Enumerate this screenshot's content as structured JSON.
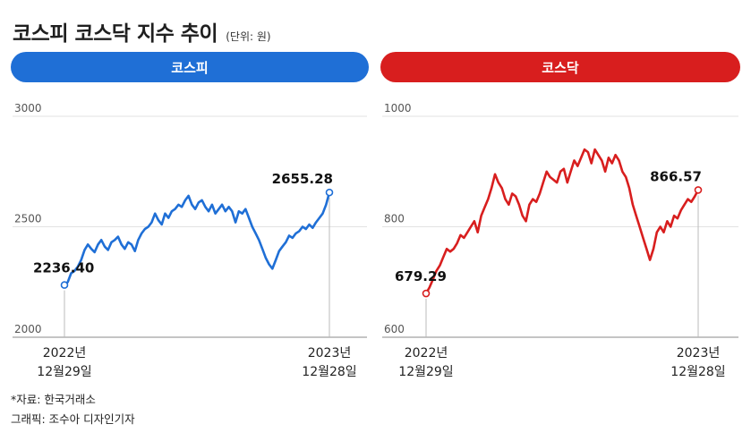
{
  "header": {
    "title": "코스피 코스닥 지수 추이",
    "unit": "(단위: 원)"
  },
  "colors": {
    "kospi": "#1f6fd6",
    "kosdaq": "#d81e1e",
    "grid": "#e2e2e2"
  },
  "footer": {
    "source": "*자료: 한국거래소",
    "credit": "그래픽: 조수아 디자인기자"
  },
  "chart_data": [
    {
      "type": "line",
      "name": "코스피",
      "ylim": [
        2000,
        3000
      ],
      "yticks": [
        "3000",
        "2500",
        "2000"
      ],
      "xticks": [
        {
          "line1": "2022년",
          "line2": "12월29일"
        },
        {
          "line1": "2023년",
          "line2": "12월28일"
        }
      ],
      "start": {
        "value": 2236.4,
        "label": "2236.40"
      },
      "end": {
        "value": 2655.28,
        "label": "2655.28"
      },
      "values": [
        2236.4,
        2250,
        2290,
        2300,
        2320,
        2350,
        2395,
        2420,
        2400,
        2385,
        2420,
        2440,
        2410,
        2395,
        2430,
        2440,
        2455,
        2420,
        2400,
        2430,
        2420,
        2390,
        2440,
        2470,
        2490,
        2500,
        2520,
        2560,
        2530,
        2510,
        2560,
        2540,
        2570,
        2580,
        2600,
        2590,
        2620,
        2640,
        2600,
        2580,
        2610,
        2620,
        2590,
        2570,
        2600,
        2560,
        2580,
        2600,
        2570,
        2590,
        2570,
        2520,
        2570,
        2560,
        2580,
        2540,
        2500,
        2470,
        2440,
        2400,
        2360,
        2330,
        2310,
        2350,
        2390,
        2410,
        2430,
        2460,
        2450,
        2470,
        2480,
        2500,
        2490,
        2510,
        2495,
        2520,
        2540,
        2560,
        2600,
        2655.28
      ]
    },
    {
      "type": "line",
      "name": "코스닥",
      "ylim": [
        600,
        1000
      ],
      "yticks": [
        "1000",
        "800",
        "600"
      ],
      "xticks": [
        {
          "line1": "2022년",
          "line2": "12월29일"
        },
        {
          "line1": "2023년",
          "line2": "12월28일"
        }
      ],
      "start": {
        "value": 679.29,
        "label": "679.29"
      },
      "end": {
        "value": 866.57,
        "label": "866.57"
      },
      "values": [
        679.29,
        690,
        705,
        720,
        730,
        745,
        760,
        755,
        760,
        770,
        785,
        780,
        790,
        800,
        810,
        790,
        820,
        835,
        850,
        870,
        895,
        880,
        870,
        850,
        840,
        860,
        855,
        840,
        820,
        810,
        840,
        850,
        845,
        860,
        880,
        900,
        890,
        885,
        880,
        900,
        905,
        880,
        900,
        920,
        910,
        925,
        940,
        935,
        915,
        940,
        930,
        920,
        900,
        925,
        915,
        930,
        920,
        900,
        890,
        870,
        840,
        820,
        800,
        780,
        760,
        740,
        760,
        790,
        800,
        790,
        810,
        800,
        820,
        815,
        830,
        840,
        850,
        845,
        855,
        866.57
      ]
    }
  ]
}
